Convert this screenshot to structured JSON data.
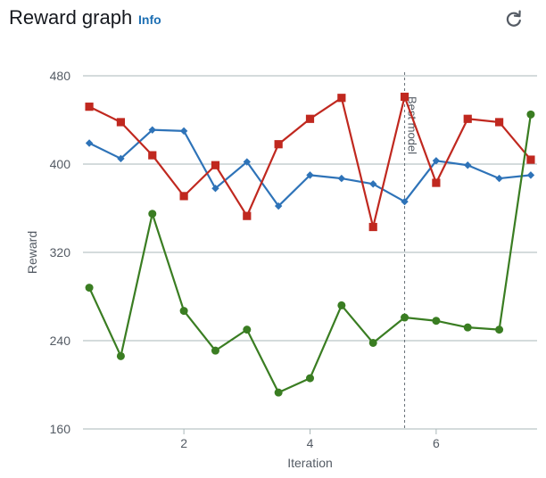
{
  "header": {
    "title": "Reward graph",
    "info_label": "Info",
    "refresh_icon": "refresh-icon"
  },
  "chart_data": {
    "type": "line",
    "title": "",
    "xlabel": "Iteration",
    "ylabel": "Reward",
    "xlim": [
      0.4,
      7.6
    ],
    "ylim": [
      160,
      480
    ],
    "x_ticks": [
      2,
      4,
      6
    ],
    "y_ticks": [
      160,
      240,
      320,
      400,
      480
    ],
    "grid": "horizontal",
    "annotations": [
      {
        "x": 5.5,
        "text": "Best model",
        "style": "dashed-vertical-line"
      }
    ],
    "series": [
      {
        "color": "#2e73b8",
        "marker": "diamond",
        "x": [
          0.5,
          1,
          1.5,
          2,
          2.5,
          3,
          3.5,
          4,
          4.5,
          5,
          5.5,
          6,
          6.5,
          7,
          7.5
        ],
        "values": [
          419,
          405,
          431,
          430,
          378,
          402,
          362,
          390,
          387,
          382,
          366,
          403,
          399,
          387,
          390
        ]
      },
      {
        "color": "#c0281f",
        "marker": "square",
        "x": [
          0.5,
          1,
          1.5,
          2,
          2.5,
          3,
          3.5,
          4,
          4.5,
          5,
          5.5,
          6,
          6.5,
          7,
          7.5
        ],
        "values": [
          452,
          438,
          408,
          371,
          399,
          353,
          418,
          441,
          460,
          343,
          461,
          383,
          441,
          438,
          404
        ]
      },
      {
        "color": "#3a7d22",
        "marker": "circle",
        "x": [
          0.5,
          1,
          1.5,
          2,
          2.5,
          3,
          3.5,
          4,
          4.5,
          5,
          5.5,
          6,
          6.5,
          7,
          7.5
        ],
        "values": [
          288,
          226,
          355,
          267,
          231,
          250,
          193,
          206,
          272,
          238,
          261,
          258,
          252,
          250,
          445
        ]
      }
    ]
  }
}
